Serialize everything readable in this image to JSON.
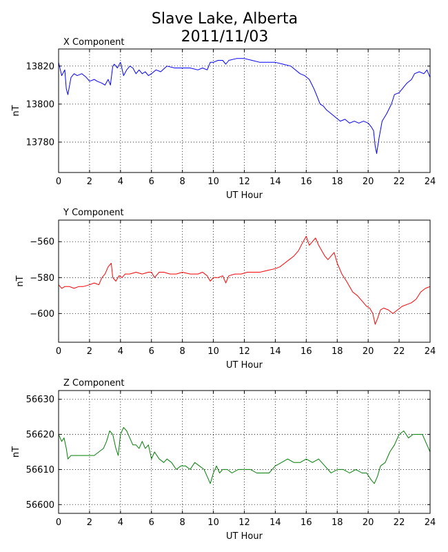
{
  "figure": {
    "title_line1": "Slave Lake, Alberta",
    "title_line2": "2011/11/03"
  },
  "chart_data": [
    {
      "type": "line",
      "title": "X Component",
      "xlabel": "UT Hour",
      "ylabel": "nT",
      "xlim": [
        0,
        24
      ],
      "ylim": [
        13764,
        13829
      ],
      "xticks": [
        0,
        2,
        4,
        6,
        8,
        10,
        12,
        14,
        16,
        18,
        20,
        22,
        24
      ],
      "yticks": [
        13780,
        13800,
        13820
      ],
      "grid": true,
      "color": "#0000ff",
      "series": [
        {
          "x": [
            0,
            0.2,
            0.4,
            0.5,
            0.6,
            0.8,
            1.0,
            1.2,
            1.5,
            1.8,
            2.0,
            2.3,
            2.5,
            2.8,
            3.0,
            3.2,
            3.35,
            3.5,
            3.6,
            3.8,
            4.0,
            4.2,
            4.4,
            4.6,
            4.8,
            5.0,
            5.2,
            5.4,
            5.6,
            5.8,
            6.0,
            6.3,
            6.6,
            7.0,
            7.5,
            8.0,
            8.5,
            9.0,
            9.3,
            9.6,
            9.8,
            10.0,
            10.3,
            10.6,
            10.8,
            11.0,
            11.5,
            12.0,
            12.5,
            13.0,
            13.5,
            14.0,
            14.5,
            15.0,
            15.3,
            15.6,
            15.9,
            16.2,
            16.5,
            16.7,
            16.9,
            17.1,
            17.3,
            17.6,
            17.9,
            18.2,
            18.5,
            18.8,
            19.1,
            19.4,
            19.7,
            20.0,
            20.2,
            20.35,
            20.45,
            20.55,
            20.7,
            20.9,
            21.2,
            21.5,
            21.7,
            22.0,
            22.2,
            22.5,
            22.8,
            23.0,
            23.3,
            23.6,
            23.8,
            24.0
          ],
          "values": [
            13822,
            13815,
            13818,
            13808,
            13805,
            13814,
            13816,
            13815,
            13816,
            13814,
            13812,
            13813,
            13812,
            13811,
            13810,
            13813,
            13810,
            13820,
            13821,
            13819,
            13822,
            13815,
            13818,
            13820,
            13819,
            13816,
            13818,
            13816,
            13817,
            13815,
            13816,
            13818,
            13817,
            13820,
            13819,
            13819,
            13819,
            13818,
            13819,
            13818,
            13822,
            13822,
            13823,
            13823,
            13821,
            13823,
            13824,
            13824,
            13823,
            13822,
            13822,
            13822,
            13821,
            13820,
            13818,
            13816,
            13815,
            13813,
            13808,
            13804,
            13800,
            13799,
            13797,
            13795,
            13793,
            13791,
            13792,
            13790,
            13791,
            13790,
            13791,
            13790,
            13788,
            13786,
            13778,
            13774,
            13782,
            13791,
            13795,
            13800,
            13805,
            13806,
            13808,
            13811,
            13813,
            13816,
            13817,
            13816,
            13818,
            13814
          ]
        }
      ]
    },
    {
      "type": "line",
      "title": "Y Component",
      "xlabel": "UT Hour",
      "ylabel": "nT",
      "xlim": [
        0,
        24
      ],
      "ylim": [
        -616,
        -548
      ],
      "xticks": [
        0,
        2,
        4,
        6,
        8,
        10,
        12,
        14,
        16,
        18,
        20,
        22,
        24
      ],
      "yticks": [
        -600,
        -580,
        -560
      ],
      "grid": true,
      "color": "#ff0000",
      "series": [
        {
          "x": [
            0,
            0.2,
            0.4,
            0.7,
            1.0,
            1.3,
            1.6,
            2.0,
            2.3,
            2.6,
            2.8,
            3.0,
            3.2,
            3.4,
            3.5,
            3.7,
            3.9,
            4.1,
            4.3,
            4.6,
            5.0,
            5.4,
            5.8,
            6.0,
            6.2,
            6.5,
            6.8,
            7.2,
            7.6,
            8.0,
            8.5,
            9.0,
            9.3,
            9.6,
            9.8,
            10.0,
            10.3,
            10.6,
            10.8,
            11.0,
            11.4,
            11.8,
            12.2,
            12.6,
            13.0,
            13.5,
            14.0,
            14.3,
            14.6,
            14.9,
            15.2,
            15.5,
            15.8,
            16.0,
            16.2,
            16.4,
            16.6,
            16.8,
            17.0,
            17.2,
            17.4,
            17.6,
            17.8,
            18.0,
            18.3,
            18.6,
            19.0,
            19.3,
            19.6,
            19.9,
            20.1,
            20.3,
            20.45,
            20.6,
            20.8,
            21.0,
            21.3,
            21.6,
            21.9,
            22.2,
            22.5,
            22.8,
            23.1,
            23.4,
            23.7,
            24.0
          ],
          "values": [
            -584,
            -586,
            -585,
            -585,
            -586,
            -585,
            -585,
            -584,
            -583,
            -584,
            -580,
            -578,
            -574,
            -572,
            -580,
            -582,
            -579,
            -580,
            -578,
            -578,
            -577,
            -578,
            -577,
            -577,
            -580,
            -577,
            -577,
            -578,
            -578,
            -577,
            -578,
            -578,
            -577,
            -579,
            -582,
            -580,
            -580,
            -579,
            -583,
            -579,
            -578,
            -578,
            -577,
            -577,
            -577,
            -576,
            -575,
            -574,
            -572,
            -570,
            -568,
            -565,
            -560,
            -557,
            -562,
            -560,
            -558,
            -562,
            -565,
            -568,
            -570,
            -568,
            -566,
            -572,
            -578,
            -582,
            -588,
            -590,
            -593,
            -596,
            -597,
            -600,
            -606,
            -603,
            -598,
            -597,
            -598,
            -600,
            -598,
            -596,
            -595,
            -594,
            -592,
            -588,
            -586,
            -585
          ]
        }
      ]
    },
    {
      "type": "line",
      "title": "Z Component",
      "xlabel": "UT Hour",
      "ylabel": "nT",
      "xlim": [
        0,
        24
      ],
      "ylim": [
        56597.5,
        56632.5
      ],
      "xticks": [
        0,
        2,
        4,
        6,
        8,
        10,
        12,
        14,
        16,
        18,
        20,
        22,
        24
      ],
      "yticks": [
        56600,
        56610,
        56620,
        56630
      ],
      "grid": true,
      "color": "#008000",
      "series": [
        {
          "x": [
            0,
            0.2,
            0.35,
            0.5,
            0.6,
            0.8,
            1.0,
            1.3,
            1.6,
            2.0,
            2.3,
            2.6,
            2.9,
            3.1,
            3.3,
            3.5,
            3.7,
            3.85,
            4.0,
            4.2,
            4.4,
            4.6,
            4.8,
            5.0,
            5.2,
            5.4,
            5.6,
            5.8,
            6.0,
            6.2,
            6.5,
            6.8,
            7.0,
            7.3,
            7.6,
            7.9,
            8.2,
            8.5,
            8.8,
            9.1,
            9.4,
            9.6,
            9.8,
            10.0,
            10.2,
            10.4,
            10.6,
            10.9,
            11.2,
            11.6,
            12.0,
            12.4,
            12.8,
            13.2,
            13.6,
            14.0,
            14.4,
            14.8,
            15.2,
            15.6,
            16.0,
            16.4,
            16.8,
            17.2,
            17.6,
            18.0,
            18.4,
            18.8,
            19.2,
            19.6,
            19.9,
            20.2,
            20.4,
            20.6,
            20.8,
            21.1,
            21.4,
            21.7,
            22.0,
            22.3,
            22.6,
            22.9,
            23.2,
            23.5,
            23.8,
            24.0
          ],
          "values": [
            56620,
            56618,
            56619,
            56616,
            56613,
            56614,
            56614,
            56614,
            56614,
            56614,
            56614,
            56615,
            56616,
            56618,
            56621,
            56620,
            56616,
            56614,
            56620,
            56622,
            56621,
            56619,
            56617,
            56617,
            56616,
            56618,
            56616,
            56617,
            56613,
            56615,
            56613,
            56612,
            56613,
            56612,
            56610,
            56611,
            56611,
            56610,
            56612,
            56611,
            56610,
            56608,
            56606,
            56609,
            56611,
            56609,
            56610,
            56610,
            56609,
            56610,
            56610,
            56610,
            56609,
            56609,
            56609,
            56611,
            56612,
            56613,
            56612,
            56612,
            56613,
            56612,
            56613,
            56611,
            56609,
            56610,
            56610,
            56609,
            56610,
            56609,
            56609,
            56607,
            56606,
            56608,
            56611,
            56612,
            56615,
            56617,
            56620,
            56621,
            56619,
            56620,
            56620,
            56620,
            56617,
            56615
          ]
        }
      ]
    }
  ]
}
